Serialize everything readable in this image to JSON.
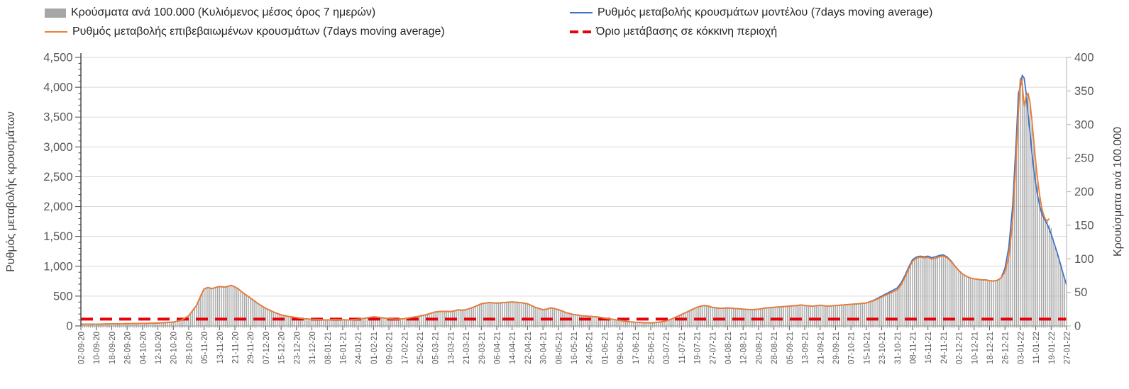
{
  "colors": {
    "bars": "#a6a6a6",
    "model_line": "#4472c4",
    "confirmed_line": "#ed7d31",
    "threshold": "#e8000b",
    "grid": "#d9d9d9",
    "axis_line_left": "#404040",
    "axis_line_right": "#bfbfbf",
    "axis_line_bottom": "#9b9b9b",
    "tick_text": "#595959",
    "background": "#ffffff"
  },
  "legend": {
    "items": [
      {
        "id": "bars",
        "label": "Κρούσματα ανά 100.000 (Κυλιόμενος μέσος όρος 7 ημερών)",
        "marker": "bar",
        "color": "#a6a6a6"
      },
      {
        "id": "confirmed",
        "label": "Ρυθμός μεταβολής επιβεβαιωμένων κρουσμάτων (7days moving average)",
        "marker": "line",
        "color": "#ed7d31"
      },
      {
        "id": "model",
        "label": "Ρυθμός μεταβολής κρουσμάτων μοντέλου (7days moving average)",
        "marker": "line",
        "color": "#4472c4"
      },
      {
        "id": "threshold",
        "label": "Όριο μετάβασης σε κόκκινη περιοχή",
        "marker": "dash",
        "color": "#e8000b"
      }
    ]
  },
  "chart_data": {
    "type": "combo-bar-line",
    "left_axis": {
      "title": "Ρυθμός μεταβολής κρουσμάτων",
      "min": 0,
      "max": 4500,
      "tick_step": 500,
      "minor_tick_step": 100,
      "tick_labels": [
        "0",
        "500",
        "1,000",
        "1,500",
        "2,000",
        "2,500",
        "3,000",
        "3,500",
        "4,000",
        "4,500"
      ]
    },
    "right_axis": {
      "title": "Κρουύσματα ανά 100.000",
      "min": 0,
      "max": 400,
      "tick_step": 50,
      "tick_labels": [
        "0",
        "50",
        "100",
        "150",
        "200",
        "250",
        "300",
        "350",
        "400"
      ]
    },
    "x_axis": {
      "total_days": 512,
      "tick_interval_days": 8,
      "tick_labels": [
        "02-09-20",
        "10-09-20",
        "18-09-20",
        "26-09-20",
        "04-10-20",
        "12-10-20",
        "20-10-20",
        "28-10-20",
        "05-11-20",
        "13-11-20",
        "21-11-20",
        "29-11-20",
        "07-12-20",
        "15-12-20",
        "23-12-20",
        "31-12-20",
        "08-01-21",
        "16-01-21",
        "24-01-21",
        "01-02-21",
        "09-02-21",
        "17-02-21",
        "25-02-21",
        "05-03-21",
        "13-03-21",
        "21-03-21",
        "29-03-21",
        "06-04-21",
        "14-04-21",
        "22-04-21",
        "30-04-21",
        "08-05-21",
        "16-05-21",
        "24-05-21",
        "01-06-21",
        "09-06-21",
        "17-06-21",
        "25-06-21",
        "03-07-21",
        "11-07-21",
        "19-07-21",
        "27-07-21",
        "04-08-21",
        "12-08-21",
        "20-08-21",
        "28-08-21",
        "05-09-21",
        "13-09-21",
        "21-09-21",
        "29-09-21",
        "07-10-21",
        "15-10-21",
        "23-10-21",
        "31-10-21",
        "08-11-21",
        "16-11-21",
        "24-11-21",
        "02-12-21",
        "10-12-21",
        "18-12-21",
        "26-12-21",
        "03-01-22",
        "11-01-22",
        "19-01-22",
        "27-01-22"
      ]
    },
    "threshold_line": {
      "label": "Όριο μετάβασης σε κόκκινη περιοχή",
      "value_left_axis": 115,
      "approx_value_right_axis": 10,
      "style": "dashed",
      "color": "#e8000b"
    },
    "note": "All series keypoint values are expressed in left-axis units (rate of change). Bars are plotted against the right axis (cases per 100.000); right-axis equivalent = value / 11.25. Keypoints are [day_index, value] with day 0 = 02-09-20; daily values are linearly interpolated.",
    "base_keypoints": [
      [
        0,
        30
      ],
      [
        8,
        30
      ],
      [
        16,
        35
      ],
      [
        24,
        38
      ],
      [
        32,
        42
      ],
      [
        40,
        48
      ],
      [
        48,
        65
      ],
      [
        52,
        95
      ],
      [
        56,
        170
      ],
      [
        60,
        340
      ],
      [
        63,
        560
      ],
      [
        64,
        620
      ],
      [
        66,
        645
      ],
      [
        68,
        625
      ],
      [
        70,
        645
      ],
      [
        72,
        660
      ],
      [
        75,
        650
      ],
      [
        78,
        680
      ],
      [
        80,
        655
      ],
      [
        82,
        615
      ],
      [
        84,
        560
      ],
      [
        88,
        470
      ],
      [
        92,
        375
      ],
      [
        96,
        295
      ],
      [
        100,
        235
      ],
      [
        104,
        185
      ],
      [
        108,
        158
      ],
      [
        112,
        140
      ],
      [
        116,
        122
      ],
      [
        120,
        112
      ],
      [
        124,
        106
      ],
      [
        128,
        100
      ],
      [
        132,
        110
      ],
      [
        136,
        104
      ],
      [
        140,
        100
      ],
      [
        144,
        112
      ],
      [
        148,
        132
      ],
      [
        152,
        152
      ],
      [
        156,
        140
      ],
      [
        160,
        122
      ],
      [
        164,
        112
      ],
      [
        168,
        122
      ],
      [
        172,
        142
      ],
      [
        176,
        165
      ],
      [
        180,
        195
      ],
      [
        184,
        235
      ],
      [
        188,
        245
      ],
      [
        192,
        240
      ],
      [
        194,
        252
      ],
      [
        196,
        272
      ],
      [
        198,
        262
      ],
      [
        200,
        272
      ],
      [
        204,
        315
      ],
      [
        208,
        372
      ],
      [
        212,
        392
      ],
      [
        216,
        382
      ],
      [
        220,
        392
      ],
      [
        224,
        402
      ],
      [
        228,
        392
      ],
      [
        232,
        372
      ],
      [
        234,
        342
      ],
      [
        236,
        312
      ],
      [
        240,
        272
      ],
      [
        242,
        282
      ],
      [
        244,
        302
      ],
      [
        246,
        292
      ],
      [
        248,
        272
      ],
      [
        250,
        252
      ],
      [
        252,
        222
      ],
      [
        256,
        192
      ],
      [
        260,
        172
      ],
      [
        264,
        162
      ],
      [
        268,
        152
      ],
      [
        272,
        132
      ],
      [
        276,
        112
      ],
      [
        280,
        92
      ],
      [
        284,
        72
      ],
      [
        288,
        62
      ],
      [
        292,
        56
      ],
      [
        296,
        50
      ],
      [
        300,
        62
      ],
      [
        304,
        82
      ],
      [
        308,
        132
      ],
      [
        312,
        192
      ],
      [
        316,
        252
      ],
      [
        320,
        312
      ],
      [
        322,
        332
      ],
      [
        324,
        342
      ],
      [
        326,
        332
      ],
      [
        328,
        312
      ],
      [
        332,
        295
      ],
      [
        336,
        302
      ],
      [
        340,
        292
      ],
      [
        344,
        282
      ],
      [
        348,
        272
      ],
      [
        352,
        282
      ],
      [
        356,
        302
      ],
      [
        360,
        312
      ],
      [
        364,
        322
      ],
      [
        368,
        332
      ],
      [
        372,
        342
      ],
      [
        374,
        352
      ],
      [
        376,
        342
      ],
      [
        380,
        332
      ],
      [
        384,
        347
      ],
      [
        388,
        332
      ],
      [
        392,
        342
      ],
      [
        396,
        352
      ],
      [
        400,
        362
      ],
      [
        404,
        372
      ],
      [
        408,
        385
      ],
      [
        412,
        425
      ],
      [
        416,
        485
      ],
      [
        420,
        545
      ],
      [
        424,
        605
      ],
      [
        426,
        685
      ],
      [
        428,
        805
      ],
      [
        430,
        955
      ],
      [
        432,
        1085
      ],
      [
        434,
        1135
      ],
      [
        436,
        1155
      ],
      [
        438,
        1140
      ],
      [
        440,
        1150
      ],
      [
        442,
        1120
      ],
      [
        444,
        1135
      ],
      [
        446,
        1160
      ],
      [
        448,
        1170
      ],
      [
        450,
        1140
      ],
      [
        452,
        1080
      ],
      [
        454,
        1000
      ],
      [
        456,
        930
      ],
      [
        458,
        870
      ],
      [
        460,
        832
      ],
      [
        462,
        805
      ],
      [
        464,
        790
      ],
      [
        466,
        780
      ],
      [
        468,
        772
      ],
      [
        470,
        772
      ],
      [
        472,
        760
      ],
      [
        474,
        752
      ],
      [
        476,
        765
      ],
      [
        478,
        805
      ],
      [
        480,
        905
      ],
      [
        482,
        1155
      ],
      [
        484,
        1750
      ],
      [
        486,
        2950
      ],
      [
        487,
        3600
      ]
    ],
    "series": [
      {
        "id": "bars",
        "name": "Κρούσματα ανά 100.000 (Κυλιόμενος μέσος όρος 7 ημερών)",
        "type": "bar",
        "axis": "right",
        "color": "#a6a6a6",
        "uses_base_keypoints": true,
        "tail_start_day": 488,
        "tail_keypoints": [
          [
            488,
            4100
          ],
          [
            489,
            4150
          ],
          [
            490,
            3720
          ],
          [
            491,
            3800
          ],
          [
            492,
            3870
          ],
          [
            493,
            3780
          ],
          [
            494,
            3500
          ],
          [
            495,
            3150
          ],
          [
            496,
            2800
          ],
          [
            497,
            2480
          ],
          [
            498,
            2230
          ],
          [
            499,
            2020
          ],
          [
            500,
            1880
          ],
          [
            501,
            1800
          ],
          [
            502,
            1755
          ],
          [
            503,
            1690
          ],
          [
            504,
            1640
          ],
          [
            505,
            1470
          ],
          [
            506,
            1360
          ],
          [
            507,
            1230
          ],
          [
            508,
            1120
          ],
          [
            509,
            1000
          ],
          [
            510,
            880
          ],
          [
            511,
            780
          ],
          [
            512,
            710
          ]
        ]
      },
      {
        "id": "model",
        "name": "Ρυθμός μεταβολής κρουσμάτων μοντέλου (7days moving average)",
        "type": "line",
        "axis": "left",
        "color": "#4472c4",
        "uses_base_keypoints": true,
        "delta_keypoints": [
          [
            0,
            0
          ],
          [
            408,
            0
          ],
          [
            416,
            15
          ],
          [
            424,
            30
          ],
          [
            428,
            35
          ],
          [
            432,
            25
          ],
          [
            436,
            15
          ],
          [
            440,
            20
          ],
          [
            444,
            25
          ],
          [
            448,
            20
          ],
          [
            452,
            10
          ],
          [
            456,
            0
          ],
          [
            478,
            0
          ],
          [
            480,
            60
          ],
          [
            482,
            160
          ],
          [
            484,
            260
          ],
          [
            486,
            250
          ],
          [
            487,
            300
          ]
        ],
        "tail_start_day": 488,
        "tail_keypoints": [
          [
            488,
            4000
          ],
          [
            489,
            4200
          ],
          [
            490,
            4150
          ],
          [
            491,
            3900
          ],
          [
            492,
            3550
          ],
          [
            493,
            3250
          ],
          [
            494,
            2900
          ],
          [
            495,
            2620
          ],
          [
            496,
            2380
          ],
          [
            497,
            2180
          ],
          [
            498,
            2020
          ],
          [
            499,
            1900
          ],
          [
            500,
            1820
          ],
          [
            501,
            1760
          ],
          [
            502,
            1700
          ],
          [
            503,
            1620
          ],
          [
            504,
            1540
          ],
          [
            505,
            1440
          ],
          [
            506,
            1340
          ],
          [
            507,
            1240
          ],
          [
            508,
            1130
          ],
          [
            509,
            1020
          ],
          [
            510,
            900
          ],
          [
            511,
            790
          ],
          [
            512,
            690
          ]
        ]
      },
      {
        "id": "confirmed",
        "name": "Ρυθμός μεταβολής επιβεβαιωμένων κρουσμάτων (7days moving average)",
        "type": "line",
        "axis": "left",
        "color": "#ed7d31",
        "uses_base_keypoints": true,
        "tail_start_day": 488,
        "tail_keypoints": [
          [
            488,
            4150
          ],
          [
            489,
            4050
          ],
          [
            490,
            3680
          ],
          [
            491,
            3850
          ],
          [
            492,
            3900
          ],
          [
            493,
            3750
          ],
          [
            494,
            3450
          ],
          [
            495,
            3100
          ],
          [
            496,
            2750
          ],
          [
            497,
            2450
          ],
          [
            498,
            2200
          ],
          [
            499,
            2000
          ],
          [
            500,
            1870
          ],
          [
            501,
            1790
          ],
          [
            502,
            1760
          ],
          [
            503,
            1800
          ]
        ]
      }
    ]
  }
}
